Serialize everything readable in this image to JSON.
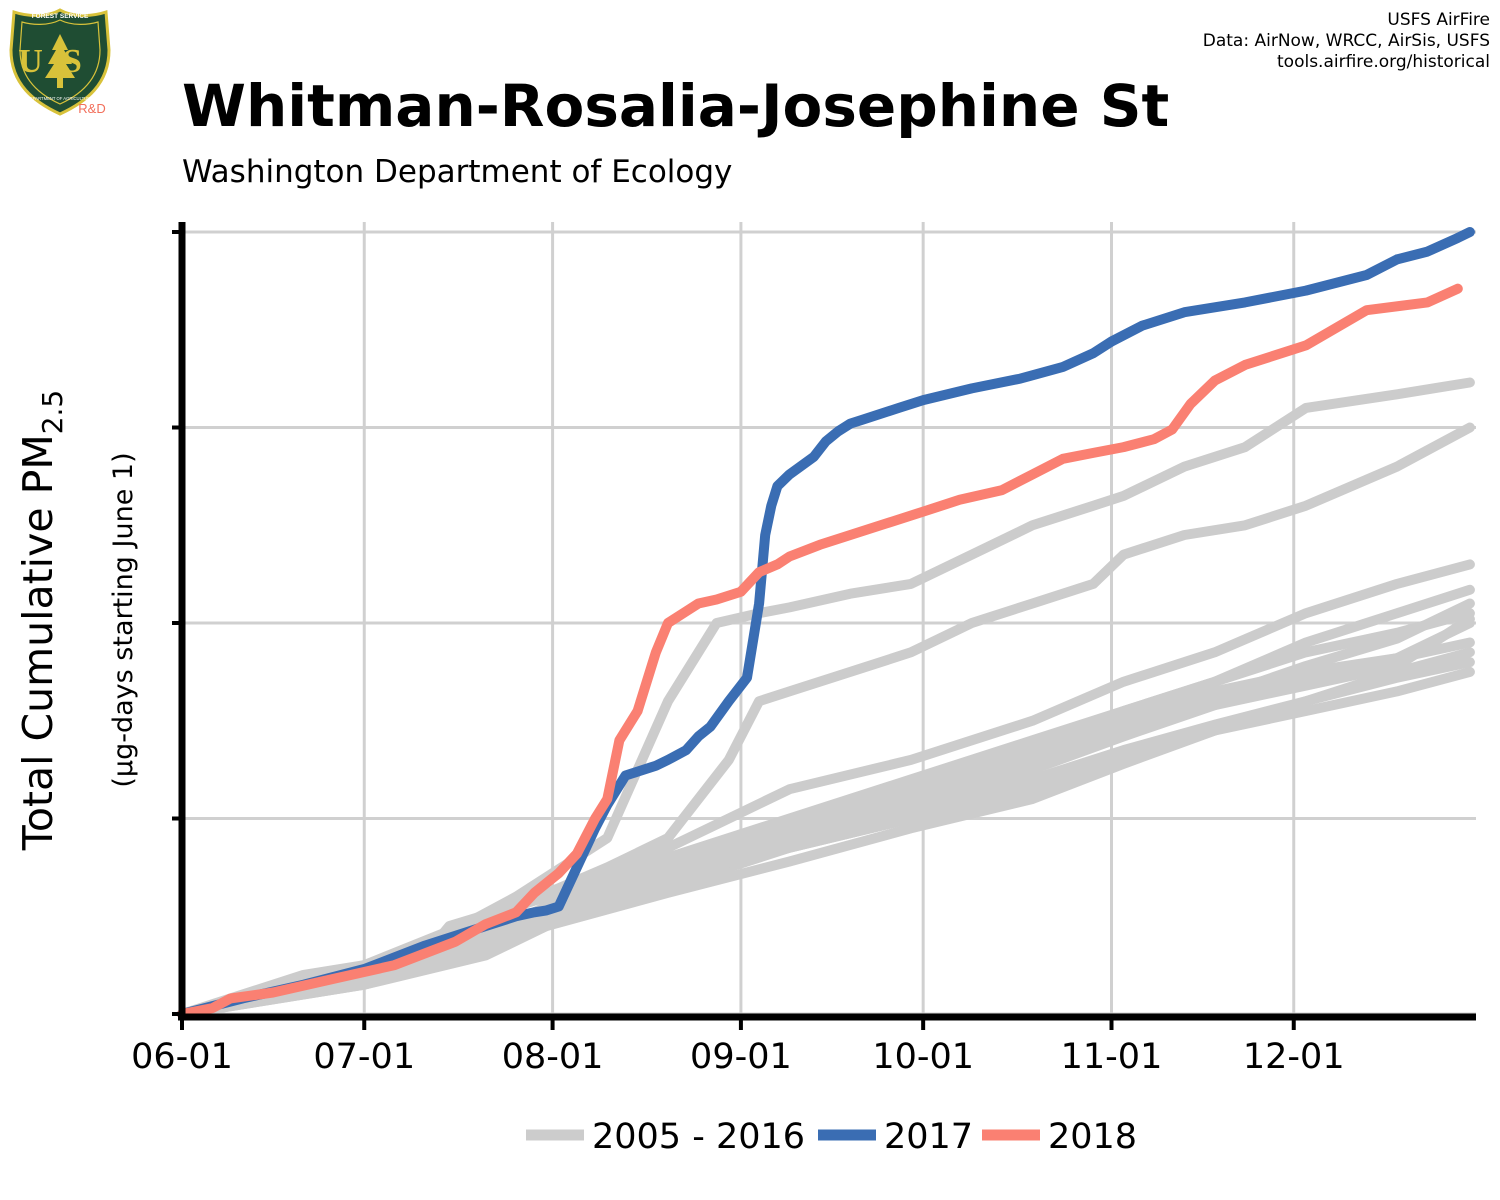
{
  "header": {
    "title": "Whitman-Rosalia-Josephine St",
    "subtitle": "Washington Department of Ecology",
    "credits": [
      "USFS AirFire",
      "Data: AirNow, WRCC, AirSis, USFS",
      "tools.airfire.org/historical"
    ],
    "logo": {
      "top_text": "FOREST SERVICE",
      "letters": "US",
      "bottom_text": "DEPARTMENT OF AGRICULTURE",
      "badge": "R&D",
      "colors": {
        "shield": "#1f4d33",
        "rim": "#d8c23a",
        "badge": "#f26f5b"
      }
    }
  },
  "chart_data": {
    "type": "line",
    "ylabel_main": "Total Cumulative PM",
    "ylabel_sub_index": "2.5",
    "ylabel_secondary": "(µg-days starting June 1)",
    "x_tick_labels": [
      "06-01",
      "07-01",
      "08-01",
      "09-01",
      "10-01",
      "11-01",
      "12-01"
    ],
    "x_tick_days": [
      0,
      30,
      61,
      92,
      122,
      153,
      183
    ],
    "xlim": [
      0,
      213
    ],
    "ylim": [
      0,
      4
    ],
    "y_ticks": [
      0,
      1,
      2,
      3,
      4
    ],
    "y_tick_labels_shown": false,
    "grid": true,
    "legend": {
      "placement": "bottom",
      "entries": [
        {
          "label": "2005 - 2016",
          "color": "#cccccc"
        },
        {
          "label": "2017",
          "color": "#3a6db3"
        },
        {
          "label": "2018",
          "color": "#fa8072"
        }
      ]
    },
    "series": [
      {
        "name": "2017",
        "color": "#3a6db3",
        "x": [
          0,
          10,
          20,
          30,
          40,
          50,
          55,
          58,
          60,
          62,
          65,
          68,
          70,
          73,
          75,
          78,
          80,
          83,
          85,
          87,
          90,
          93,
          95,
          96,
          97,
          98,
          100,
          104,
          106,
          108,
          110,
          112,
          118,
          122,
          130,
          138,
          145,
          150,
          153,
          158,
          165,
          175,
          185,
          195,
          200,
          205,
          210,
          212
        ],
        "y": [
          0,
          0.08,
          0.15,
          0.23,
          0.35,
          0.45,
          0.5,
          0.52,
          0.53,
          0.55,
          0.75,
          0.95,
          1.07,
          1.22,
          1.24,
          1.27,
          1.3,
          1.35,
          1.42,
          1.47,
          1.6,
          1.72,
          2.1,
          2.45,
          2.6,
          2.7,
          2.76,
          2.85,
          2.93,
          2.98,
          3.02,
          3.04,
          3.1,
          3.14,
          3.2,
          3.25,
          3.31,
          3.38,
          3.44,
          3.52,
          3.59,
          3.64,
          3.7,
          3.78,
          3.86,
          3.9,
          3.97,
          4.0
        ]
      },
      {
        "name": "2018",
        "color": "#fa8072",
        "x": [
          0,
          5,
          8,
          15,
          25,
          35,
          45,
          50,
          55,
          58,
          62,
          65,
          68,
          70,
          72,
          75,
          78,
          80,
          83,
          85,
          88,
          92,
          95,
          98,
          100,
          105,
          110,
          115,
          122,
          128,
          135,
          140,
          145,
          150,
          155,
          160,
          163,
          166,
          170,
          175,
          185,
          195,
          205,
          210
        ],
        "y": [
          0,
          0.03,
          0.08,
          0.11,
          0.18,
          0.25,
          0.37,
          0.46,
          0.52,
          0.62,
          0.72,
          0.82,
          1.0,
          1.1,
          1.4,
          1.55,
          1.85,
          2.0,
          2.06,
          2.1,
          2.12,
          2.16,
          2.26,
          2.3,
          2.34,
          2.4,
          2.45,
          2.5,
          2.57,
          2.63,
          2.68,
          2.76,
          2.84,
          2.87,
          2.9,
          2.94,
          2.99,
          3.12,
          3.24,
          3.32,
          3.42,
          3.6,
          3.64,
          3.71
        ]
      }
    ],
    "background_series": [
      {
        "x": [
          0,
          20,
          40,
          55,
          70,
          80,
          88,
          95,
          100,
          110,
          120,
          130,
          140,
          150,
          155,
          165,
          175,
          185,
          200,
          212
        ],
        "y": [
          0,
          0.15,
          0.35,
          0.6,
          0.9,
          1.6,
          2.0,
          2.05,
          2.08,
          2.15,
          2.2,
          2.35,
          2.5,
          2.6,
          2.65,
          2.8,
          2.9,
          3.1,
          3.17,
          3.23
        ]
      },
      {
        "x": [
          0,
          20,
          40,
          55,
          70,
          80,
          90,
          95,
          100,
          110,
          120,
          130,
          140,
          150,
          155,
          165,
          175,
          185,
          200,
          212
        ],
        "y": [
          0,
          0.12,
          0.35,
          0.55,
          0.75,
          0.9,
          1.3,
          1.6,
          1.65,
          1.75,
          1.85,
          2.0,
          2.1,
          2.2,
          2.35,
          2.45,
          2.5,
          2.6,
          2.8,
          3.0
        ]
      },
      {
        "x": [
          0,
          30,
          50,
          60,
          80,
          90,
          100,
          120,
          140,
          155,
          170,
          185,
          200,
          212
        ],
        "y": [
          0,
          0.25,
          0.5,
          0.6,
          0.85,
          1.0,
          1.15,
          1.3,
          1.5,
          1.7,
          1.85,
          2.05,
          2.2,
          2.3
        ]
      },
      {
        "x": [
          0,
          30,
          50,
          60,
          80,
          100,
          120,
          140,
          155,
          170,
          185,
          200,
          212
        ],
        "y": [
          0,
          0.2,
          0.4,
          0.55,
          0.75,
          0.95,
          1.15,
          1.35,
          1.55,
          1.7,
          1.9,
          2.05,
          2.17
        ]
      },
      {
        "x": [
          0,
          20,
          40,
          44,
          60,
          80,
          100,
          120,
          140,
          155,
          170,
          185,
          200,
          212
        ],
        "y": [
          0,
          0.2,
          0.3,
          0.45,
          0.6,
          0.8,
          1.0,
          1.2,
          1.4,
          1.55,
          1.7,
          1.85,
          1.95,
          2.05
        ]
      },
      {
        "x": [
          0,
          30,
          50,
          60,
          80,
          100,
          120,
          140,
          155,
          170,
          185,
          200,
          212
        ],
        "y": [
          0,
          0.18,
          0.38,
          0.5,
          0.7,
          0.9,
          1.05,
          1.25,
          1.45,
          1.62,
          1.78,
          1.92,
          2.1
        ]
      },
      {
        "x": [
          0,
          30,
          50,
          60,
          80,
          100,
          120,
          140,
          155,
          170,
          185,
          200,
          212
        ],
        "y": [
          0,
          0.2,
          0.4,
          0.55,
          0.8,
          0.95,
          1.1,
          1.3,
          1.5,
          1.65,
          1.75,
          1.82,
          1.9
        ]
      },
      {
        "x": [
          0,
          30,
          50,
          60,
          80,
          100,
          120,
          140,
          155,
          170,
          185,
          200,
          212
        ],
        "y": [
          0,
          0.15,
          0.32,
          0.45,
          0.65,
          0.85,
          1.0,
          1.15,
          1.3,
          1.45,
          1.6,
          1.75,
          1.85
        ]
      },
      {
        "x": [
          0,
          30,
          50,
          60,
          80,
          100,
          120,
          140,
          155,
          170,
          185,
          200,
          212
        ],
        "y": [
          0,
          0.22,
          0.4,
          0.55,
          0.7,
          0.88,
          1.05,
          1.25,
          1.42,
          1.58,
          1.72,
          1.82,
          2.0
        ]
      },
      {
        "x": [
          0,
          30,
          50,
          60,
          80,
          100,
          120,
          140,
          155,
          170,
          185,
          200,
          212
        ],
        "y": [
          0,
          0.18,
          0.35,
          0.5,
          0.7,
          0.85,
          1.0,
          1.2,
          1.35,
          1.48,
          1.6,
          1.72,
          1.8
        ]
      },
      {
        "x": [
          0,
          30,
          50,
          60,
          80,
          100,
          120,
          140,
          155,
          170,
          185,
          200,
          212
        ],
        "y": [
          0,
          0.15,
          0.3,
          0.45,
          0.62,
          0.78,
          0.95,
          1.1,
          1.28,
          1.45,
          1.55,
          1.65,
          1.75
        ]
      },
      {
        "x": [
          0,
          30,
          50,
          60,
          80,
          100,
          120,
          140,
          155,
          170,
          185,
          200,
          212
        ],
        "y": [
          0,
          0.2,
          0.38,
          0.52,
          0.72,
          0.9,
          1.08,
          1.28,
          1.45,
          1.58,
          1.68,
          1.78,
          2.02
        ]
      }
    ]
  }
}
